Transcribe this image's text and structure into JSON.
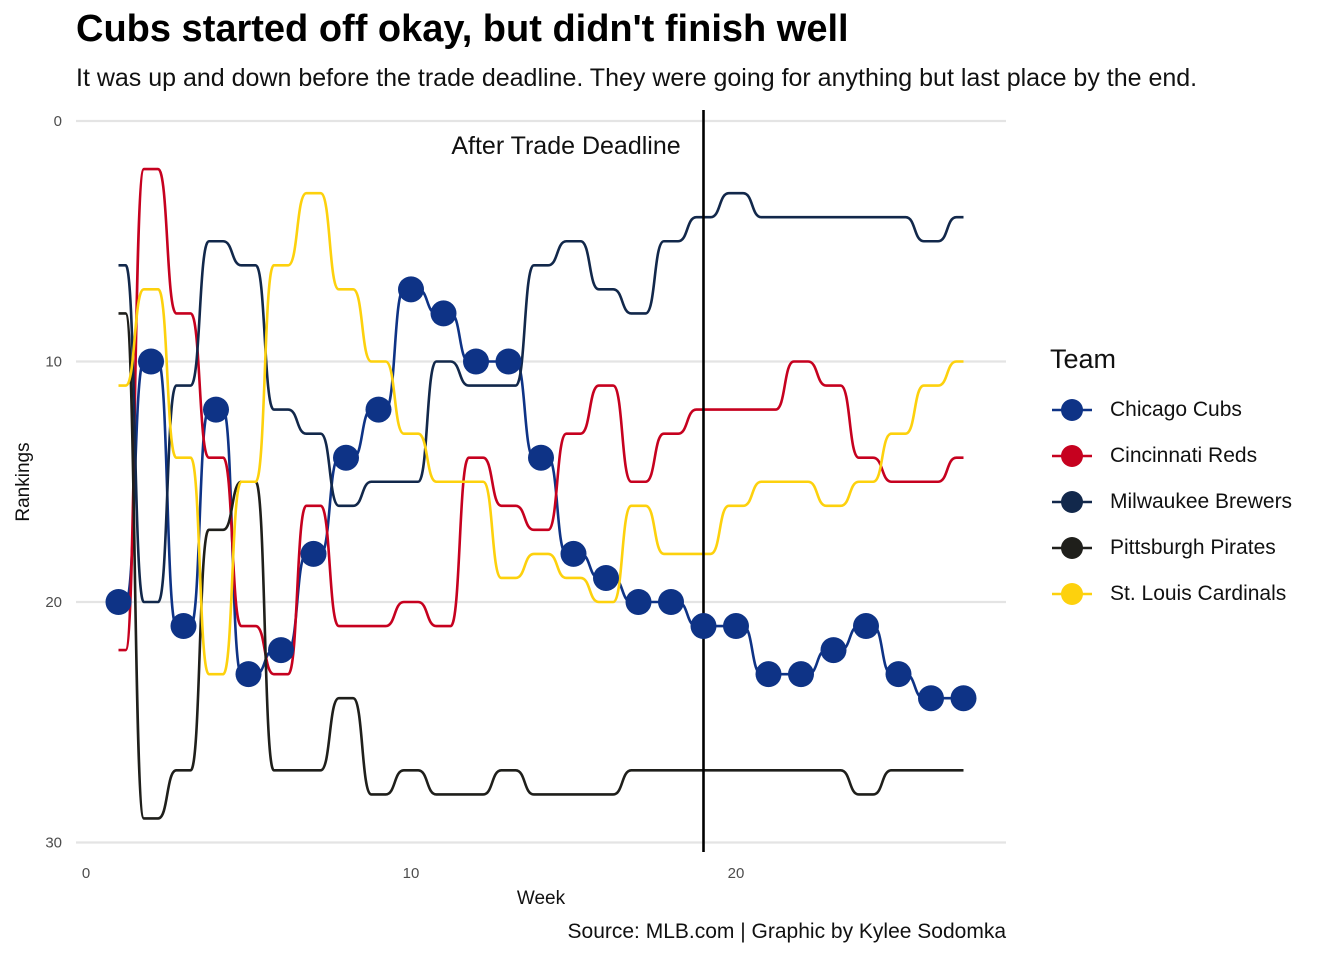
{
  "title": "Cubs started off okay, but didn't finish well",
  "subtitle": "It was up and down before the trade deadline. They were going for anything but last place by the end.",
  "caption": "Source: MLB.com | Graphic by Kylee Sodomka",
  "legend_title": "Team",
  "chart_data": {
    "type": "line",
    "xlabel": "Week",
    "ylabel": "Rankings",
    "xlim": [
      0,
      28.6
    ],
    "ylim": [
      30,
      0
    ],
    "y_reversed": true,
    "x_ticks": [
      0,
      10,
      20
    ],
    "y_ticks": [
      0,
      10,
      20,
      30
    ],
    "grid": "horizontal major only",
    "legend_position": "right",
    "vline": {
      "x": 19,
      "label": "After Trade Deadline"
    },
    "series": [
      {
        "name": "Chicago Cubs",
        "color": "#0E3386",
        "points": true,
        "x": [
          1,
          2,
          3,
          4,
          5,
          6,
          7,
          8,
          9,
          10,
          11,
          12,
          13,
          14,
          15,
          16,
          17,
          18,
          19,
          20,
          21,
          22,
          23,
          24,
          25,
          26,
          27
        ],
        "y": [
          20,
          10,
          21,
          12,
          23,
          22,
          18,
          14,
          12,
          7,
          8,
          10,
          10,
          14,
          18,
          19,
          20,
          20,
          21,
          21,
          23,
          23,
          22,
          21,
          23,
          24,
          24
        ]
      },
      {
        "name": "Cincinnati Reds",
        "color": "#C6011F",
        "points": false,
        "x": [
          1,
          2,
          3,
          4,
          5,
          6,
          7,
          8,
          9,
          10,
          11,
          12,
          13,
          14,
          15,
          16,
          17,
          18,
          19,
          20,
          21,
          22,
          23,
          24,
          25,
          26,
          27
        ],
        "y": [
          22,
          2,
          8,
          14,
          21,
          23,
          16,
          21,
          21,
          20,
          21,
          14,
          16,
          17,
          13,
          11,
          15,
          13,
          12,
          12,
          12,
          10,
          11,
          14,
          15,
          15,
          14
        ]
      },
      {
        "name": "Milwaukee Brewers",
        "color": "#12284B",
        "points": false,
        "x": [
          1,
          2,
          3,
          4,
          5,
          6,
          7,
          8,
          9,
          10,
          11,
          12,
          13,
          14,
          15,
          16,
          17,
          18,
          19,
          20,
          21,
          22,
          23,
          24,
          25,
          26,
          27
        ],
        "y": [
          6,
          20,
          11,
          5,
          6,
          12,
          13,
          16,
          15,
          15,
          10,
          11,
          11,
          6,
          5,
          7,
          8,
          5,
          4,
          3,
          4,
          4,
          4,
          4,
          4,
          5,
          4
        ]
      },
      {
        "name": "Pittsburgh Pirates",
        "color": "#1F1F1B",
        "points": false,
        "x": [
          1,
          2,
          3,
          4,
          5,
          6,
          7,
          8,
          9,
          10,
          11,
          12,
          13,
          14,
          15,
          16,
          17,
          18,
          19,
          20,
          21,
          22,
          23,
          24,
          25,
          26,
          27
        ],
        "y": [
          8,
          29,
          27,
          17,
          15,
          27,
          27,
          24,
          28,
          27,
          28,
          28,
          27,
          28,
          28,
          28,
          27,
          27,
          27,
          27,
          27,
          27,
          27,
          28,
          27,
          27,
          27
        ]
      },
      {
        "name": "St. Louis Cardinals",
        "color": "#FDD10D",
        "points": false,
        "x": [
          1,
          2,
          3,
          4,
          5,
          6,
          7,
          8,
          9,
          10,
          11,
          12,
          13,
          14,
          15,
          16,
          17,
          18,
          19,
          20,
          21,
          22,
          23,
          24,
          25,
          26,
          27
        ],
        "y": [
          11,
          7,
          14,
          23,
          15,
          6,
          3,
          7,
          10,
          13,
          15,
          15,
          19,
          18,
          19,
          20,
          16,
          18,
          18,
          16,
          15,
          15,
          16,
          15,
          13,
          11,
          10
        ]
      }
    ]
  }
}
